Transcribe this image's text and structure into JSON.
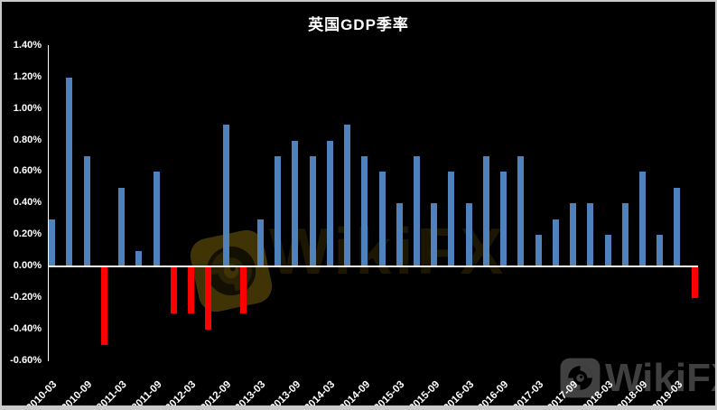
{
  "title": "英国GDP季率",
  "watermarks": {
    "center_brand": "WikiFX",
    "bottom_brand": "WikiFX"
  },
  "chart_data": {
    "type": "bar",
    "title": "英国GDP季率",
    "value_unit": "%",
    "x": [
      "2010-03",
      "2010-06",
      "2010-09",
      "2010-12",
      "2011-03",
      "2011-06",
      "2011-09",
      "2011-12",
      "2012-03",
      "2012-06",
      "2012-09",
      "2012-12",
      "2013-03",
      "2013-06",
      "2013-09",
      "2013-12",
      "2014-03",
      "2014-06",
      "2014-09",
      "2014-12",
      "2015-03",
      "2015-06",
      "2015-09",
      "2015-12",
      "2016-03",
      "2016-06",
      "2016-09",
      "2016-12",
      "2017-03",
      "2017-06",
      "2017-09",
      "2017-12",
      "2018-03",
      "2018-06",
      "2018-09",
      "2018-12",
      "2019-03",
      "2019-06"
    ],
    "values": [
      0.3,
      1.2,
      0.7,
      -0.5,
      0.5,
      0.1,
      0.6,
      -0.3,
      -0.3,
      -0.4,
      0.9,
      -0.3,
      0.3,
      0.7,
      0.8,
      0.7,
      0.8,
      0.9,
      0.7,
      0.6,
      0.4,
      0.7,
      0.4,
      0.6,
      0.4,
      0.7,
      0.6,
      0.7,
      0.2,
      0.3,
      0.4,
      0.4,
      0.2,
      0.4,
      0.6,
      0.2,
      0.5,
      -0.2
    ],
    "xtick_labels": [
      "2010-03",
      "2010-09",
      "2011-03",
      "2011-09",
      "2012-03",
      "2012-09",
      "2013-03",
      "2013-09",
      "2014-03",
      "2014-09",
      "2015-03",
      "2015-09",
      "2016-03",
      "2016-09",
      "2017-03",
      "2017-09",
      "2018-03",
      "2018-09",
      "2019-03"
    ],
    "xtick_every": 2,
    "ytick_labels": [
      "1.40%",
      "1.20%",
      "1.00%",
      "0.80%",
      "0.60%",
      "0.40%",
      "0.20%",
      "0.00%",
      "-0.20%",
      "-0.40%",
      "-0.60%"
    ],
    "ytick_values": [
      1.4,
      1.2,
      1.0,
      0.8,
      0.6,
      0.4,
      0.2,
      0.0,
      -0.2,
      -0.4,
      -0.6
    ],
    "ylim": [
      -0.6,
      1.4
    ],
    "positive_color": "#4f81bd",
    "negative_color": "#ff0000",
    "axis_color": "#ffffff",
    "background_color": "#000000",
    "grid": false,
    "legend": false
  }
}
